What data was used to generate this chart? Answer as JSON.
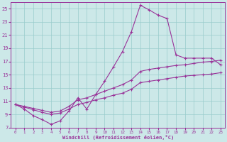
{
  "xlabel": "Windchill (Refroidissement éolien,°C)",
  "bg_color": "#cce8e8",
  "grid_color": "#99cccc",
  "line_color": "#993399",
  "xlim": [
    -0.5,
    23.5
  ],
  "ylim": [
    7,
    26
  ],
  "yticks": [
    7,
    9,
    11,
    13,
    15,
    17,
    19,
    21,
    23,
    25
  ],
  "xticks": [
    0,
    1,
    2,
    3,
    4,
    5,
    6,
    7,
    8,
    9,
    10,
    11,
    12,
    13,
    14,
    15,
    16,
    17,
    18,
    19,
    20,
    21,
    22,
    23
  ],
  "series1_x": [
    0,
    1,
    2,
    3,
    4,
    5,
    6,
    7,
    8,
    9,
    10,
    11,
    12,
    13,
    14,
    15,
    16,
    17,
    18,
    19,
    20,
    21,
    22,
    23
  ],
  "series1_y": [
    10.5,
    9.8,
    8.8,
    8.2,
    7.5,
    8.0,
    9.5,
    11.5,
    9.8,
    12.0,
    14.0,
    16.2,
    18.5,
    21.5,
    25.5,
    24.8,
    24.0,
    23.5,
    18.0,
    17.5,
    17.5,
    17.5,
    17.5,
    16.5
  ],
  "series2_x": [
    0,
    1,
    2,
    3,
    4,
    5,
    6,
    7,
    8,
    9,
    10,
    11,
    12,
    13,
    14,
    15,
    16,
    17,
    18,
    19,
    20,
    21,
    22,
    23
  ],
  "series2_y": [
    10.5,
    10.2,
    9.9,
    9.6,
    9.3,
    9.5,
    10.2,
    11.2,
    11.5,
    12.0,
    12.5,
    13.0,
    13.5,
    14.2,
    15.5,
    15.8,
    16.0,
    16.2,
    16.4,
    16.5,
    16.7,
    16.9,
    17.0,
    17.2
  ],
  "series3_x": [
    0,
    1,
    2,
    3,
    4,
    5,
    6,
    7,
    8,
    9,
    10,
    11,
    12,
    13,
    14,
    15,
    16,
    17,
    18,
    19,
    20,
    21,
    22,
    23
  ],
  "series3_y": [
    10.5,
    10.1,
    9.7,
    9.3,
    9.0,
    9.2,
    9.8,
    10.5,
    10.8,
    11.2,
    11.5,
    11.9,
    12.2,
    12.8,
    13.8,
    14.0,
    14.2,
    14.4,
    14.6,
    14.8,
    14.9,
    15.0,
    15.1,
    15.3
  ]
}
